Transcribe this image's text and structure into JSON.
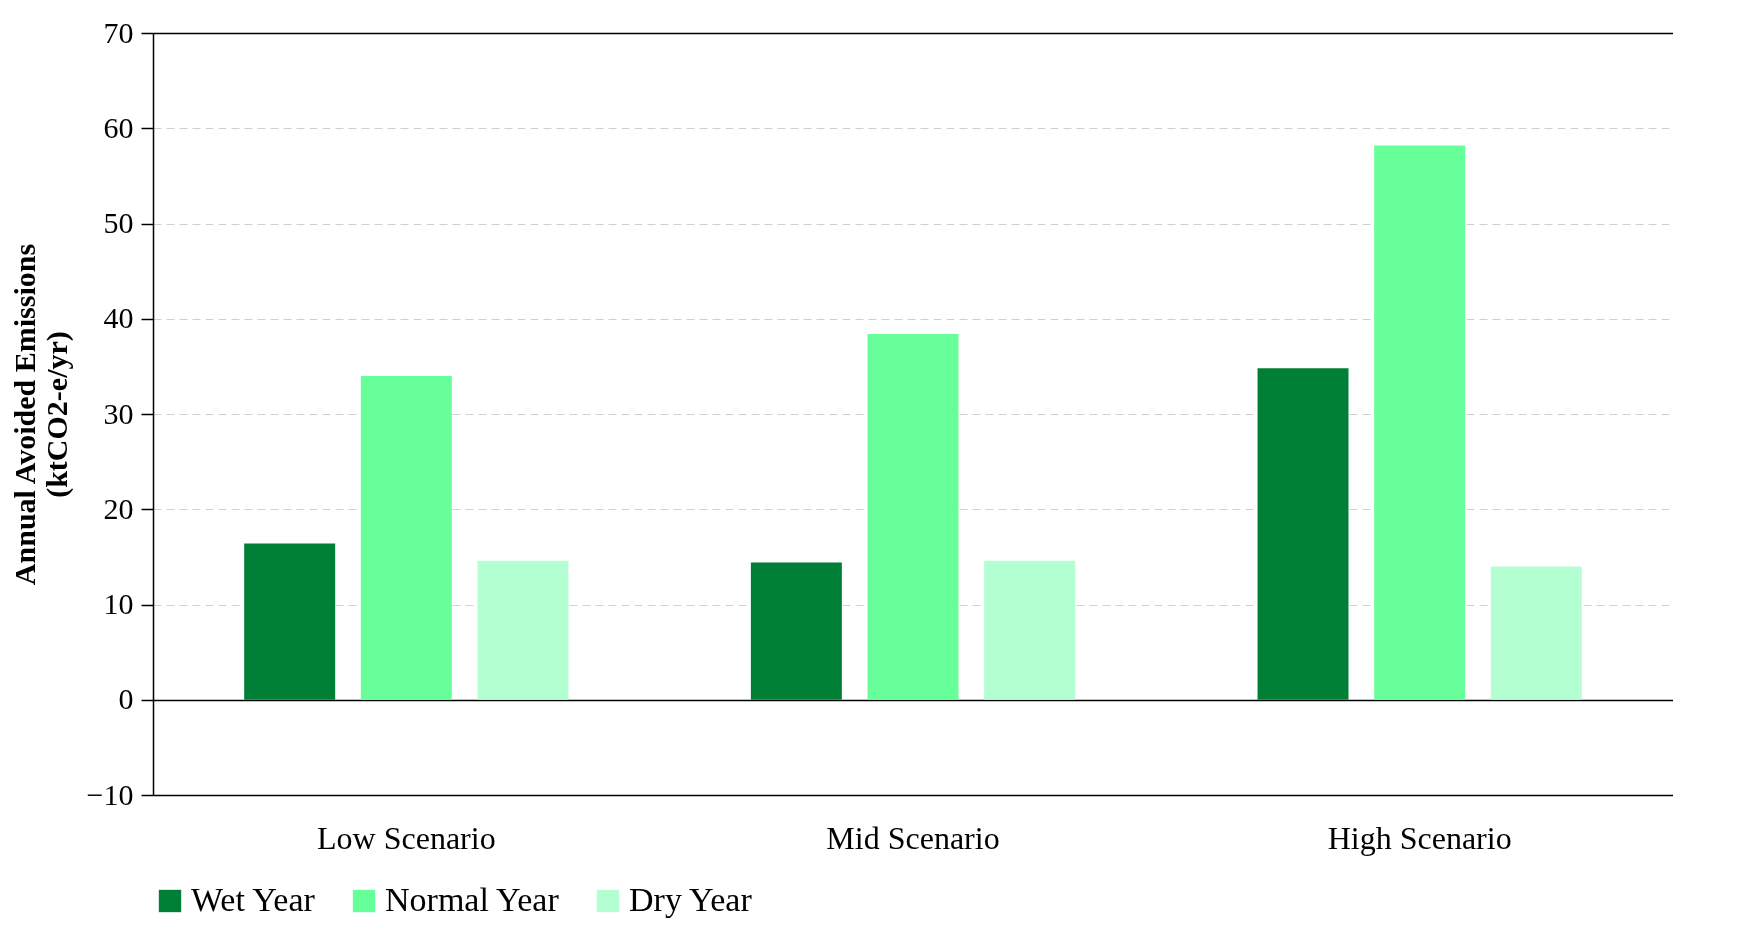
{
  "chart_data": {
    "type": "bar",
    "ylabel": "Annual Avoided Emissions\n(ktCO2-e/yr)",
    "categories": [
      "Low Scenario",
      "Mid Scenario",
      "High Scenario"
    ],
    "series": [
      {
        "name": "Wet Year",
        "color": "#007f37",
        "values": [
          16.4,
          14.4,
          34.8
        ]
      },
      {
        "name": "Normal Year",
        "color": "#66ff99",
        "values": [
          34.0,
          38.4,
          58.2
        ]
      },
      {
        "name": "Dry Year",
        "color": "#b3ffd1",
        "values": [
          14.6,
          14.6,
          14.0
        ]
      }
    ],
    "ylim": [
      -10,
      70
    ],
    "yticks": [
      -10,
      0,
      10,
      20,
      30,
      40,
      50,
      60,
      70
    ],
    "grid": "y",
    "legend": "bottom"
  }
}
